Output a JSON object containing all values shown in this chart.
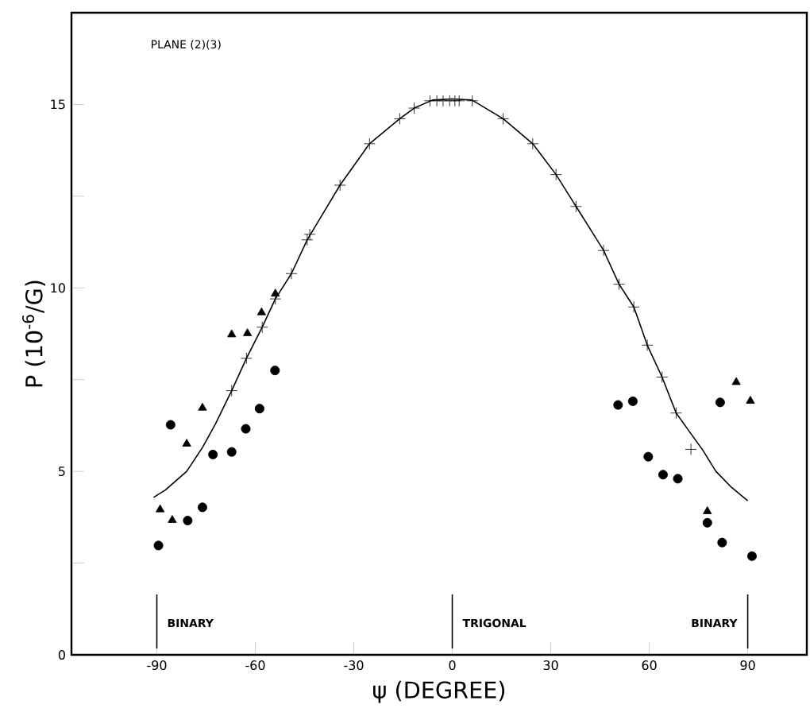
{
  "chart_data": {
    "type": "scatter",
    "ylabel": "P (10$^{-6}$/G)",
    "xlabel": "ψ (DEGREE)",
    "xlim": [
      -116,
      108
    ],
    "ylim": [
      0,
      17.5
    ],
    "xticks": [
      -90,
      -60,
      -30,
      0,
      30,
      60,
      90
    ],
    "yticks": [
      0,
      {
        "value": 2.5,
        "label": null
      },
      5,
      {
        "value": 7.5,
        "label": null
      },
      10,
      {
        "value": 12.5,
        "label": null
      },
      15
    ],
    "grid": false,
    "annotations": [
      "PLANE (2)(3)"
    ],
    "ref_lines": [
      {
        "axis": "x",
        "value": -90,
        "label": "BINARY"
      },
      {
        "axis": "x",
        "value": 0,
        "label": "TRIGONAL"
      },
      {
        "axis": "x",
        "value": 90,
        "label": "BINARY"
      }
    ],
    "series": [
      {
        "type": "line",
        "color": "#000000",
        "marker": "none",
        "x": [
          -91,
          -87.4,
          -80.9,
          -76.1,
          -72.1,
          -67.2,
          -62.7,
          -57.9,
          -53.9,
          -49,
          -44.2,
          -34.2,
          -25.2,
          -16,
          -11.6,
          -6,
          0,
          6,
          15.5,
          24.5,
          31.6,
          37.7,
          46.1,
          50.8,
          55.3,
          59.4,
          63.9,
          68.2,
          72.5,
          76.3,
          80.3,
          85.1,
          90
        ],
        "values": [
          4.29,
          4.49,
          5.0,
          5.65,
          6.3,
          7.2,
          8.08,
          8.93,
          9.7,
          10.39,
          11.31,
          12.8,
          13.93,
          14.61,
          14.9,
          15.12,
          15.15,
          15.12,
          14.61,
          13.93,
          13.09,
          12.22,
          11.02,
          10.1,
          9.48,
          8.44,
          7.57,
          6.59,
          6.05,
          5.58,
          5.0,
          4.56,
          4.2
        ]
      },
      {
        "color": "#000000",
        "marker": "cross",
        "x": [
          -67.2,
          -62.7,
          -57.9,
          -53.9,
          -49,
          -44.2,
          -43.4,
          -34.2,
          -25.2,
          -16,
          -11.6,
          -6.8,
          -4.7,
          -2.8,
          -0.8,
          0.8,
          2.1,
          6.1,
          15.5,
          24.5,
          31.6,
          37.7,
          46.1,
          50.8,
          55.3,
          59.4,
          63.9,
          68.2,
          72.7
        ],
        "values": [
          7.2,
          8.08,
          8.93,
          9.7,
          10.39,
          11.31,
          11.46,
          12.8,
          13.93,
          14.61,
          14.9,
          15.1,
          15.1,
          15.1,
          15.1,
          15.1,
          15.1,
          15.1,
          14.61,
          13.93,
          13.09,
          12.22,
          11.02,
          10.1,
          9.48,
          8.44,
          7.57,
          6.59,
          5.6
        ]
      },
      {
        "color": "#000000",
        "marker": "triangle",
        "x": [
          -89,
          -85.3,
          -80.9,
          -76.1,
          -67.2,
          -62.4,
          -58.1,
          -53.9,
          77.7,
          86.5,
          90.8
        ],
        "values": [
          3.96,
          3.67,
          5.75,
          6.73,
          8.73,
          8.76,
          9.33,
          9.84,
          3.91,
          7.43,
          6.92
        ]
      },
      {
        "color": "#000000",
        "marker": "circle",
        "x": [
          -89.5,
          -85.8,
          -80.6,
          -76.1,
          -72.9,
          -67.2,
          -62.9,
          -58.7,
          -54,
          50.5,
          55,
          59.7,
          64.2,
          68.7,
          77.7,
          81.6,
          82.2,
          91.3
        ],
        "values": [
          2.98,
          6.27,
          3.66,
          4.02,
          5.46,
          5.53,
          6.16,
          6.71,
          7.75,
          6.81,
          6.91,
          5.4,
          4.91,
          4.8,
          3.6,
          6.88,
          3.06,
          2.69
        ]
      }
    ]
  }
}
